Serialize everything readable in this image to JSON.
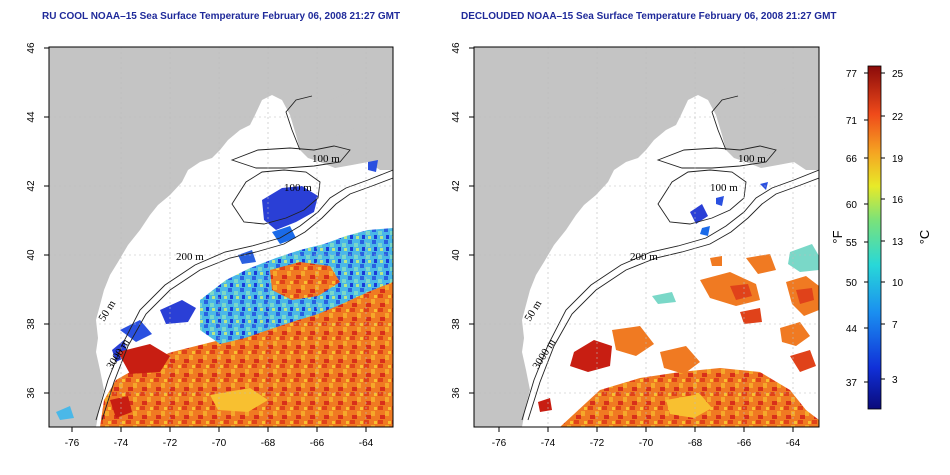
{
  "panels": [
    {
      "title": "RU COOL NOAA–15 Sea Surface Temperature February 06, 2008 21:27 GMT"
    },
    {
      "title": "DECLOUDED NOAA–15 Sea Surface Temperature February 06, 2008 21:27 GMT"
    }
  ],
  "axes": {
    "x_ticks": [
      "-76",
      "-74",
      "-72",
      "-70",
      "-68",
      "-66",
      "-64"
    ],
    "y_ticks": [
      "46",
      "44",
      "42",
      "40",
      "38",
      "36"
    ]
  },
  "contours": {
    "label_100": "100 m",
    "label_200": "200 m",
    "label_50": "50 m",
    "label_3000": "3000 m"
  },
  "colorbar": {
    "f_ticks": [
      "77",
      "71",
      "66",
      "60",
      "55",
      "50",
      "44",
      "37"
    ],
    "c_ticks": [
      "25",
      "22",
      "19",
      "16",
      "13",
      "10",
      "7",
      "3"
    ],
    "f_unit": "°F",
    "c_unit": "°C"
  },
  "colors": {
    "land": "#c4c4c4",
    "water": "#ffffff",
    "title": "#1f2a9a",
    "cold": "#2a3fd6",
    "warm": "#f08020",
    "hot": "#c81e12"
  }
}
